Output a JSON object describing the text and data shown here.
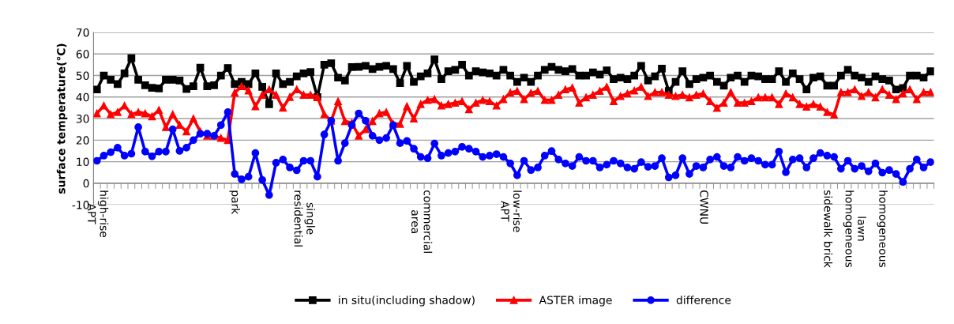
{
  "chart_data": {
    "type": "line",
    "ylabel": "surface temperature(℃)",
    "categories": [
      "high-rise\nAPT",
      null,
      null,
      null,
      null,
      null,
      null,
      null,
      null,
      null,
      null,
      null,
      null,
      null,
      null,
      null,
      null,
      null,
      null,
      null,
      "park",
      null,
      null,
      null,
      null,
      null,
      null,
      null,
      null,
      null,
      "single\nresidential",
      null,
      null,
      null,
      null,
      null,
      null,
      null,
      null,
      null,
      null,
      null,
      null,
      null,
      null,
      null,
      null,
      "commercial\narea",
      null,
      null,
      null,
      null,
      null,
      null,
      null,
      null,
      null,
      null,
      null,
      null,
      "low-rise\nAPT",
      null,
      null,
      null,
      null,
      null,
      null,
      null,
      null,
      null,
      null,
      null,
      null,
      null,
      null,
      null,
      null,
      null,
      null,
      null,
      null,
      null,
      null,
      null,
      null,
      null,
      null,
      null,
      "CWNU",
      null,
      null,
      null,
      null,
      null,
      null,
      null,
      null,
      null,
      null,
      null,
      null,
      null,
      null,
      null,
      null,
      null,
      "sidewalk brick",
      null,
      null,
      null,
      "lawn\nhomogeneous",
      null,
      null,
      null,
      "homogeneous",
      null,
      null,
      null,
      null,
      null,
      null,
      null
    ],
    "ylim": [
      -10,
      70
    ],
    "yticks": [
      -10,
      0,
      10,
      20,
      30,
      40,
      50,
      60,
      70
    ],
    "grid": "y",
    "legend": "bottom",
    "series": [
      {
        "name": "in situ(including shadow)",
        "color": "#000000",
        "marker": "square",
        "values": [
          43.5,
          50,
          48,
          46,
          51,
          58,
          48,
          45.5,
          44.3,
          44,
          48,
          48,
          47.7,
          43.7,
          45,
          53.6,
          45,
          45.5,
          50,
          53.5,
          46,
          47,
          46,
          51,
          44.7,
          36.7,
          51,
          46,
          47,
          49.6,
          51,
          51.6,
          40,
          55,
          55.7,
          49,
          47.7,
          53.9,
          54,
          54.5,
          53,
          54,
          54.5,
          53,
          46.5,
          54.5,
          47,
          49.6,
          51,
          57.5,
          48.3,
          52,
          52.6,
          55,
          50,
          52,
          51.4,
          51,
          50,
          52.6,
          50,
          47,
          49,
          47,
          50,
          52.6,
          54,
          52.6,
          52,
          53,
          50,
          50,
          51.4,
          50.4,
          52.4,
          48.3,
          49,
          48.3,
          50,
          54.5,
          47.7,
          49.6,
          53.2,
          42.8,
          47,
          52,
          46,
          48.3,
          49,
          50,
          47,
          45.3,
          49,
          50,
          47,
          50,
          49.6,
          48.3,
          48.3,
          52,
          47,
          51,
          48.3,
          43.5,
          49,
          49.6,
          45.3,
          45.3,
          50,
          52.6,
          50,
          49,
          47,
          49.6,
          48.3,
          47.7,
          43.5,
          44.2,
          50,
          50,
          49,
          52
        ]
      },
      {
        "name": "ASTER image",
        "color": "#ff0000",
        "marker": "triangle",
        "values": [
          32.4,
          36,
          32,
          33,
          36,
          32,
          33,
          32.4,
          31,
          34,
          26,
          32,
          27,
          24,
          30,
          24,
          22,
          22,
          21,
          20,
          42,
          45,
          43,
          35.7,
          41,
          43.5,
          41,
          35,
          40,
          43.5,
          41,
          41,
          40,
          32,
          29,
          38,
          28.8,
          28,
          22,
          25,
          28.8,
          32.4,
          33,
          27.5,
          27.5,
          35.7,
          30,
          36.7,
          38.6,
          39,
          36,
          36.7,
          37.3,
          38,
          34.3,
          37.3,
          38.6,
          38,
          36,
          39,
          42,
          42.8,
          39,
          41.9,
          42.8,
          38.6,
          38.6,
          41,
          43.5,
          44.3,
          37.3,
          39.8,
          41,
          42.8,
          44.7,
          38,
          40.4,
          41.6,
          43,
          44.7,
          40.4,
          42.2,
          42.2,
          41,
          40.4,
          41,
          39.8,
          41,
          41.6,
          38,
          34.9,
          37.3,
          42.2,
          37.3,
          37.3,
          38,
          39.8,
          39.8,
          39.8,
          36.7,
          41.6,
          39.8,
          36.7,
          35.5,
          36.7,
          35.5,
          33,
          31.8,
          42.2,
          42.2,
          43.5,
          40.4,
          42.2,
          39.8,
          43.5,
          41,
          39,
          41.6,
          43.5,
          39,
          42.2,
          42.2
        ]
      },
      {
        "name": "difference",
        "color": "#0000ff",
        "marker": "circle",
        "values": [
          10.4,
          12.8,
          14.4,
          16.5,
          12.8,
          13.7,
          26,
          14.7,
          12.5,
          14.7,
          14.7,
          25,
          15,
          16.5,
          20,
          23,
          23,
          22,
          27,
          33,
          4.3,
          1.8,
          3,
          14,
          1.5,
          -5.5,
          9.5,
          11,
          7.3,
          6,
          10.4,
          10.4,
          3,
          22.6,
          29,
          10.4,
          18.6,
          27,
          32.4,
          29,
          22,
          20,
          21,
          27,
          18.6,
          19.6,
          16,
          12.2,
          11.6,
          18.4,
          12.8,
          14,
          14.7,
          16.9,
          16,
          14.7,
          12.2,
          12.8,
          13.5,
          12.2,
          9.2,
          3.7,
          10.4,
          6.1,
          7.3,
          12.8,
          14.9,
          11,
          9.2,
          8,
          12.2,
          10.4,
          10.4,
          7.3,
          8.6,
          10.4,
          9.2,
          7.3,
          6.7,
          9.8,
          7.6,
          8,
          11.6,
          2.7,
          3.7,
          11.6,
          4.3,
          8,
          7.3,
          11,
          12.2,
          8,
          7.3,
          12.2,
          10.4,
          11.6,
          10.4,
          8.6,
          8.6,
          14.7,
          5.1,
          11,
          11.6,
          7.3,
          11.6,
          14,
          12.8,
          12.2,
          6.7,
          10.4,
          6.7,
          8,
          5.5,
          9.2,
          4.9,
          6.1,
          4.3,
          0.6,
          6.7,
          11,
          7.3,
          9.8
        ]
      }
    ]
  }
}
